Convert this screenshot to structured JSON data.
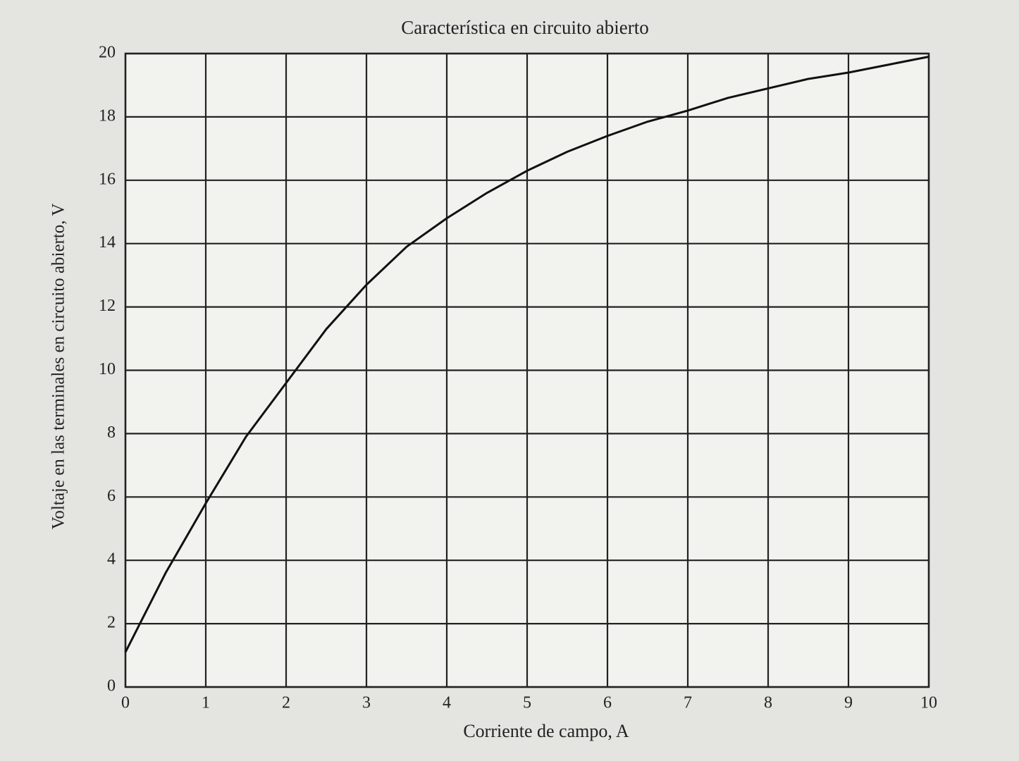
{
  "chart_data": {
    "type": "line",
    "title": "Característica en circuito abierto",
    "x_label": "Corriente de campo, A",
    "y_label": "Voltaje en las terminales en circuito abierto, V",
    "x": [
      0,
      0.5,
      1,
      1.5,
      2,
      2.5,
      3,
      3.5,
      4,
      4.5,
      5,
      5.5,
      6,
      6.5,
      7,
      7.5,
      8,
      8.5,
      9,
      9.5,
      10
    ],
    "values": [
      1.1,
      3.6,
      5.8,
      7.9,
      9.6,
      11.3,
      12.7,
      13.9,
      14.8,
      15.6,
      16.3,
      16.9,
      17.4,
      17.85,
      18.2,
      18.6,
      18.9,
      19.2,
      19.4,
      19.65,
      19.9
    ],
    "color": "#111111",
    "xlim": [
      0,
      10
    ],
    "xticks": [
      0,
      1,
      2,
      3,
      4,
      5,
      6,
      7,
      8,
      9,
      10
    ],
    "ylim": [
      0,
      20
    ],
    "yticks": [
      0,
      2,
      4,
      6,
      8,
      10,
      12,
      14,
      16,
      18,
      20
    ],
    "grid": true
  }
}
